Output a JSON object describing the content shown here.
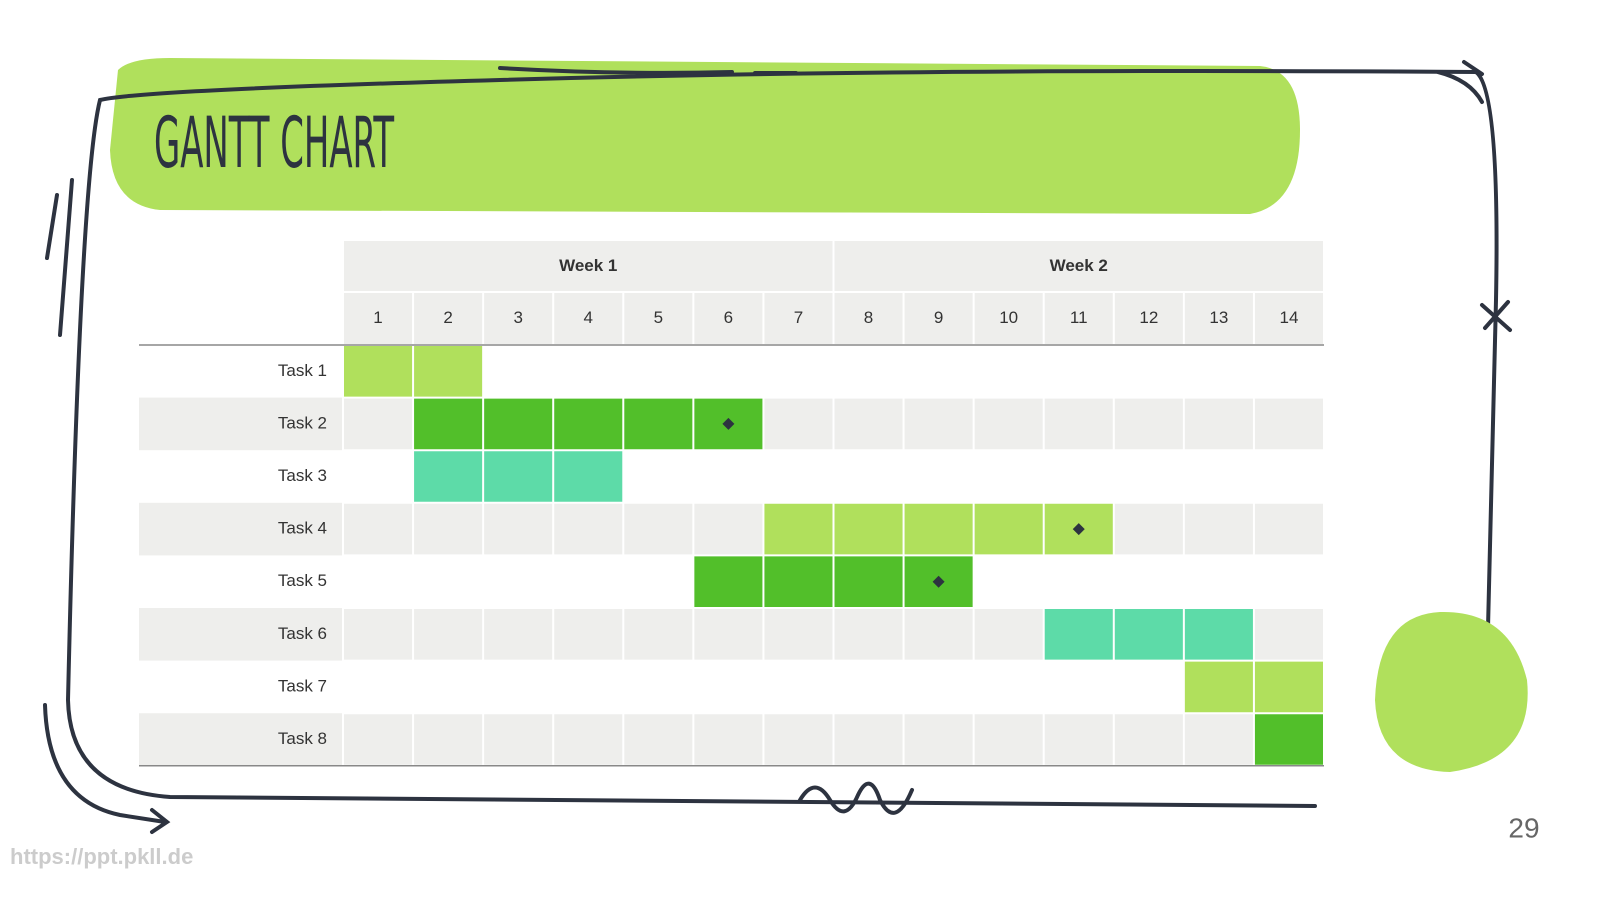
{
  "title": "GANTT CHART",
  "weeks": [
    "Week 1",
    "Week 2"
  ],
  "days": [
    1,
    2,
    3,
    4,
    5,
    6,
    7,
    8,
    9,
    10,
    11,
    12,
    13,
    14
  ],
  "tasks": [
    {
      "label": "Task 1",
      "start": 1,
      "end": 2,
      "color": "#b0e05c"
    },
    {
      "label": "Task 2",
      "start": 2,
      "end": 6,
      "color": "#52bf2a",
      "milestone": 6
    },
    {
      "label": "Task 3",
      "start": 2,
      "end": 4,
      "color": "#5ddba8"
    },
    {
      "label": "Task 4",
      "start": 7,
      "end": 11,
      "color": "#b0e05c",
      "milestone": 11
    },
    {
      "label": "Task 5",
      "start": 6,
      "end": 9,
      "color": "#52bf2a",
      "milestone": 9
    },
    {
      "label": "Task 6",
      "start": 11,
      "end": 13,
      "color": "#5ddba8"
    },
    {
      "label": "Task 7",
      "start": 13,
      "end": 14,
      "color": "#b0e05c"
    },
    {
      "label": "Task 8",
      "start": 14,
      "end": 14,
      "color": "#52bf2a"
    }
  ],
  "page_number": "29",
  "watermark": "https://ppt.pkll.de"
}
